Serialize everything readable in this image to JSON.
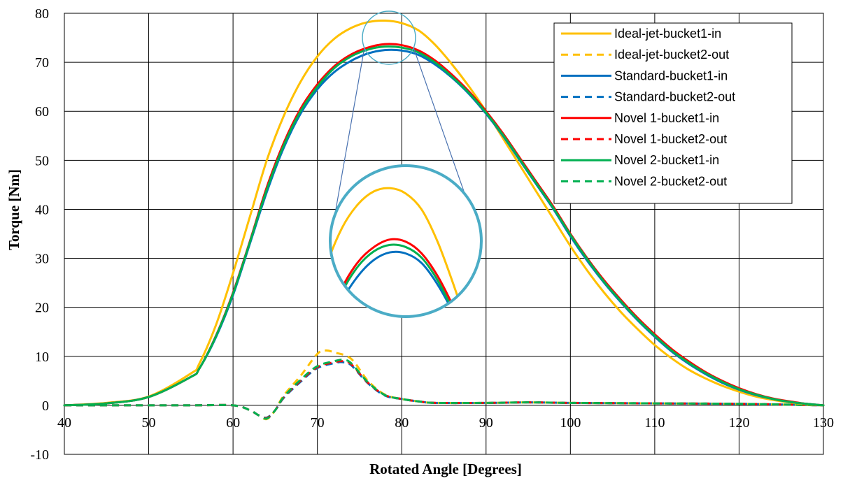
{
  "chart_data": {
    "type": "line",
    "title": "",
    "xlabel": "Rotated Angle [Degrees]",
    "ylabel": "Torque [Nm]",
    "xlim": [
      40,
      130
    ],
    "ylim": [
      -10,
      80
    ],
    "xticks": [
      40,
      50,
      60,
      70,
      80,
      90,
      100,
      110,
      120,
      130
    ],
    "yticks": [
      -10,
      0,
      10,
      20,
      30,
      40,
      50,
      60,
      70,
      80
    ],
    "grid": true,
    "legend_position": "top-right",
    "inset_zoom": true,
    "series": [
      {
        "name": "Ideal-jet-bucket1-in",
        "color": "#FFC000",
        "dash": "solid",
        "points": [
          [
            40,
            0
          ],
          [
            45,
            0.5
          ],
          [
            50,
            1.8
          ],
          [
            55,
            6.5
          ],
          [
            56,
            8.5
          ],
          [
            58,
            16.5
          ],
          [
            60,
            27
          ],
          [
            62,
            38.5
          ],
          [
            64,
            50
          ],
          [
            66,
            59
          ],
          [
            68,
            66
          ],
          [
            70,
            71.2
          ],
          [
            72,
            74.8
          ],
          [
            74,
            77
          ],
          [
            76,
            78.2
          ],
          [
            78,
            78.5
          ],
          [
            80,
            78
          ],
          [
            82,
            76.5
          ],
          [
            84,
            73.5
          ],
          [
            86,
            69.5
          ],
          [
            88,
            65
          ],
          [
            90,
            60
          ],
          [
            92,
            54.5
          ],
          [
            94,
            49
          ],
          [
            96,
            43.5
          ],
          [
            98,
            38
          ],
          [
            100,
            32.5
          ],
          [
            102,
            27.5
          ],
          [
            104,
            23
          ],
          [
            106,
            19
          ],
          [
            108,
            15.5
          ],
          [
            110,
            12.3
          ],
          [
            112,
            9.6
          ],
          [
            114,
            7.3
          ],
          [
            116,
            5.5
          ],
          [
            118,
            4
          ],
          [
            120,
            2.8
          ],
          [
            122,
            1.8
          ],
          [
            124,
            1.1
          ],
          [
            126,
            0.6
          ],
          [
            128,
            0.2
          ],
          [
            130,
            0
          ]
        ]
      },
      {
        "name": "Ideal-jet-bucket2-out",
        "color": "#FFC000",
        "dash": "dashed",
        "points": [
          [
            40,
            0
          ],
          [
            50,
            0
          ],
          [
            55,
            0
          ],
          [
            60,
            0
          ],
          [
            62,
            -1
          ],
          [
            63,
            -2
          ],
          [
            64,
            -2.8
          ],
          [
            65,
            -1
          ],
          [
            66,
            2
          ],
          [
            68,
            6
          ],
          [
            70,
            10.5
          ],
          [
            71,
            11.2
          ],
          [
            72,
            10.8
          ],
          [
            74,
            9.5
          ],
          [
            76,
            5
          ],
          [
            78,
            2.2
          ],
          [
            80,
            1.3
          ],
          [
            82,
            0.8
          ],
          [
            84,
            0.5
          ],
          [
            90,
            0.5
          ],
          [
            95,
            0.6
          ],
          [
            100,
            0.5
          ],
          [
            110,
            0.4
          ],
          [
            120,
            0.3
          ],
          [
            130,
            0
          ]
        ]
      },
      {
        "name": "Standard-bucket1-in",
        "color": "#0070C0",
        "dash": "solid",
        "points": [
          [
            40,
            0
          ],
          [
            45,
            0.4
          ],
          [
            50,
            1.7
          ],
          [
            55,
            5.8
          ],
          [
            56,
            7.5
          ],
          [
            58,
            14
          ],
          [
            60,
            22.5
          ],
          [
            62,
            33
          ],
          [
            64,
            43.5
          ],
          [
            66,
            52.5
          ],
          [
            68,
            59.5
          ],
          [
            70,
            64.5
          ],
          [
            72,
            68
          ],
          [
            74,
            70.3
          ],
          [
            76,
            71.8
          ],
          [
            78,
            72.5
          ],
          [
            80,
            72.4
          ],
          [
            82,
            71.5
          ],
          [
            84,
            69.5
          ],
          [
            86,
            66.8
          ],
          [
            88,
            63.5
          ],
          [
            90,
            59.5
          ],
          [
            92,
            55
          ],
          [
            94,
            50
          ],
          [
            96,
            45
          ],
          [
            98,
            40
          ],
          [
            100,
            34.5
          ],
          [
            102,
            29.5
          ],
          [
            104,
            25
          ],
          [
            106,
            21
          ],
          [
            108,
            17.3
          ],
          [
            110,
            14
          ],
          [
            112,
            11
          ],
          [
            114,
            8.5
          ],
          [
            116,
            6.4
          ],
          [
            118,
            4.6
          ],
          [
            120,
            3.2
          ],
          [
            122,
            2.1
          ],
          [
            124,
            1.3
          ],
          [
            126,
            0.7
          ],
          [
            128,
            0.3
          ],
          [
            130,
            0
          ]
        ]
      },
      {
        "name": "Standard-bucket2-out",
        "color": "#0070C0",
        "dash": "dashed",
        "points": [
          [
            40,
            0
          ],
          [
            50,
            0
          ],
          [
            55,
            0
          ],
          [
            60,
            0
          ],
          [
            62,
            -1
          ],
          [
            63,
            -2
          ],
          [
            64,
            -2.5
          ],
          [
            65,
            -1
          ],
          [
            66,
            1.5
          ],
          [
            68,
            4.8
          ],
          [
            70,
            7.6
          ],
          [
            72,
            8.6
          ],
          [
            73,
            8.8
          ],
          [
            74,
            8.2
          ],
          [
            76,
            4.5
          ],
          [
            78,
            2
          ],
          [
            80,
            1.3
          ],
          [
            82,
            0.8
          ],
          [
            84,
            0.5
          ],
          [
            90,
            0.5
          ],
          [
            95,
            0.6
          ],
          [
            100,
            0.5
          ],
          [
            110,
            0.4
          ],
          [
            120,
            0.3
          ],
          [
            130,
            0
          ]
        ]
      },
      {
        "name": "Novel 1-bucket1-in",
        "color": "#FF0000",
        "dash": "solid",
        "points": [
          [
            40,
            0
          ],
          [
            45,
            0.4
          ],
          [
            50,
            1.7
          ],
          [
            55,
            5.8
          ],
          [
            56,
            7.5
          ],
          [
            58,
            14.3
          ],
          [
            60,
            23
          ],
          [
            62,
            33.5
          ],
          [
            64,
            44.5
          ],
          [
            66,
            53.5
          ],
          [
            68,
            60.5
          ],
          [
            70,
            65.5
          ],
          [
            72,
            69.2
          ],
          [
            74,
            71.6
          ],
          [
            76,
            73
          ],
          [
            78,
            73.7
          ],
          [
            80,
            73.5
          ],
          [
            82,
            72.4
          ],
          [
            84,
            70.3
          ],
          [
            86,
            67.4
          ],
          [
            88,
            64
          ],
          [
            90,
            60
          ],
          [
            92,
            55.5
          ],
          [
            94,
            50.5
          ],
          [
            96,
            45.5
          ],
          [
            98,
            40.5
          ],
          [
            100,
            35
          ],
          [
            102,
            30
          ],
          [
            104,
            25.5
          ],
          [
            106,
            21.5
          ],
          [
            108,
            17.8
          ],
          [
            110,
            14.5
          ],
          [
            112,
            11.5
          ],
          [
            114,
            9
          ],
          [
            116,
            6.8
          ],
          [
            118,
            5
          ],
          [
            120,
            3.5
          ],
          [
            122,
            2.3
          ],
          [
            124,
            1.4
          ],
          [
            126,
            0.8
          ],
          [
            128,
            0.3
          ],
          [
            130,
            0
          ]
        ]
      },
      {
        "name": "Novel 1-bucket2-out",
        "color": "#FF0000",
        "dash": "dashed",
        "points": [
          [
            40,
            0
          ],
          [
            50,
            0
          ],
          [
            55,
            0
          ],
          [
            60,
            0
          ],
          [
            62,
            -1
          ],
          [
            63,
            -2
          ],
          [
            64,
            -2.6
          ],
          [
            65,
            -1
          ],
          [
            66,
            1.6
          ],
          [
            68,
            5
          ],
          [
            70,
            7.8
          ],
          [
            72,
            8.8
          ],
          [
            73,
            9
          ],
          [
            74,
            8.4
          ],
          [
            76,
            4.6
          ],
          [
            78,
            2.1
          ],
          [
            80,
            1.3
          ],
          [
            82,
            0.8
          ],
          [
            84,
            0.5
          ],
          [
            90,
            0.5
          ],
          [
            95,
            0.6
          ],
          [
            100,
            0.5
          ],
          [
            110,
            0.4
          ],
          [
            120,
            0.3
          ],
          [
            130,
            0
          ]
        ]
      },
      {
        "name": "Novel 2-bucket1-in",
        "color": "#00B050",
        "dash": "solid",
        "points": [
          [
            40,
            0
          ],
          [
            45,
            0.4
          ],
          [
            50,
            1.7
          ],
          [
            55,
            5.8
          ],
          [
            56,
            7.5
          ],
          [
            58,
            14.2
          ],
          [
            60,
            22.8
          ],
          [
            62,
            33.3
          ],
          [
            64,
            44
          ],
          [
            66,
            53
          ],
          [
            68,
            60
          ],
          [
            70,
            65
          ],
          [
            72,
            68.8
          ],
          [
            74,
            71.2
          ],
          [
            76,
            72.6
          ],
          [
            78,
            73.2
          ],
          [
            80,
            73
          ],
          [
            82,
            72
          ],
          [
            84,
            69.9
          ],
          [
            86,
            67
          ],
          [
            88,
            63.7
          ],
          [
            90,
            59.7
          ],
          [
            92,
            55.2
          ],
          [
            94,
            50.2
          ],
          [
            96,
            45.2
          ],
          [
            98,
            40.2
          ],
          [
            100,
            34.8
          ],
          [
            102,
            29.8
          ],
          [
            104,
            25.2
          ],
          [
            106,
            21.2
          ],
          [
            108,
            17.5
          ],
          [
            110,
            14.2
          ],
          [
            112,
            11.2
          ],
          [
            114,
            8.7
          ],
          [
            116,
            6.6
          ],
          [
            118,
            4.8
          ],
          [
            120,
            3.3
          ],
          [
            122,
            2.2
          ],
          [
            124,
            1.3
          ],
          [
            126,
            0.7
          ],
          [
            128,
            0.3
          ],
          [
            130,
            0
          ]
        ]
      },
      {
        "name": "Novel 2-bucket2-out",
        "color": "#00B050",
        "dash": "dashed",
        "points": [
          [
            40,
            0
          ],
          [
            50,
            0
          ],
          [
            55,
            0
          ],
          [
            60,
            0
          ],
          [
            62,
            -1
          ],
          [
            63,
            -2
          ],
          [
            64,
            -2.7
          ],
          [
            65,
            -1
          ],
          [
            66,
            1.7
          ],
          [
            68,
            5.2
          ],
          [
            70,
            8
          ],
          [
            72,
            9
          ],
          [
            73,
            9.3
          ],
          [
            74,
            8.6
          ],
          [
            76,
            4.7
          ],
          [
            78,
            2.1
          ],
          [
            80,
            1.3
          ],
          [
            82,
            0.8
          ],
          [
            84,
            0.5
          ],
          [
            90,
            0.5
          ],
          [
            95,
            0.6
          ],
          [
            100,
            0.5
          ],
          [
            110,
            0.4
          ],
          [
            120,
            0.3
          ],
          [
            130,
            0
          ]
        ]
      }
    ]
  }
}
